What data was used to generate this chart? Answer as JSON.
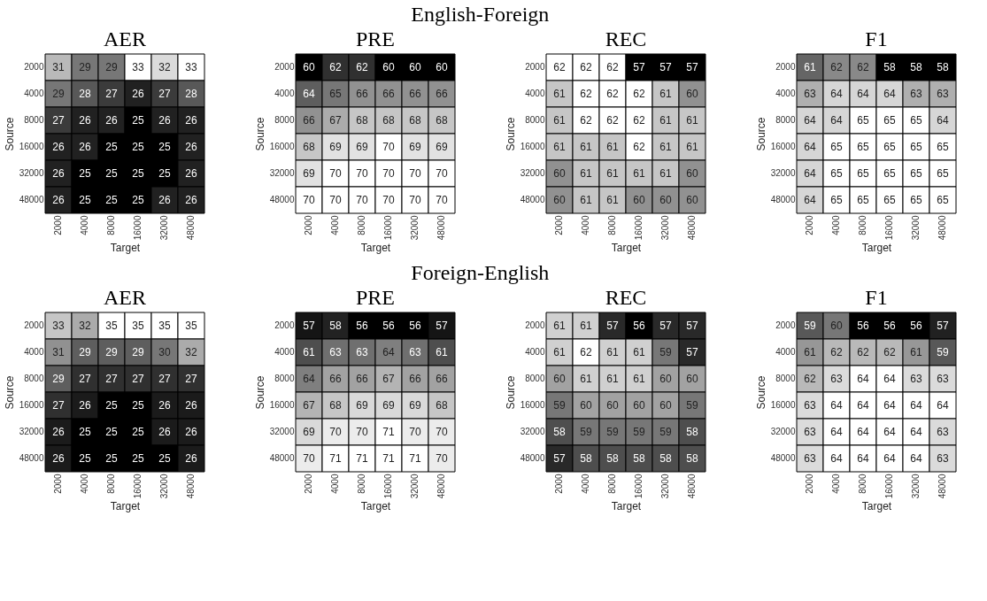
{
  "chart_data": [
    {
      "type": "heatmap",
      "title": "AER",
      "annotations": [
        "English-Foreign"
      ],
      "xlabel": "Target",
      "ylabel": "Source",
      "categories": [
        "2000",
        "4000",
        "8000",
        "16000",
        "32000",
        "48000"
      ],
      "y_categories": [
        "2000",
        "4000",
        "8000",
        "16000",
        "32000",
        "48000"
      ],
      "data_labels": true,
      "cells": [
        [
          31,
          29,
          29,
          33,
          32,
          33
        ],
        [
          29,
          28,
          27,
          26,
          27,
          28
        ],
        [
          27,
          26,
          26,
          25,
          26,
          26
        ],
        [
          26,
          26,
          25,
          25,
          25,
          26
        ],
        [
          26,
          25,
          25,
          25,
          25,
          26
        ],
        [
          26,
          25,
          25,
          25,
          26,
          26
        ]
      ]
    },
    {
      "type": "heatmap",
      "title": "PRE",
      "xlabel": "Target",
      "ylabel": "Source",
      "categories": [
        "2000",
        "4000",
        "8000",
        "16000",
        "32000",
        "48000"
      ],
      "y_categories": [
        "2000",
        "4000",
        "8000",
        "16000",
        "32000",
        "48000"
      ],
      "data_labels": true,
      "cells": [
        [
          60,
          62,
          62,
          60,
          60,
          60
        ],
        [
          64,
          65,
          66,
          66,
          66,
          66
        ],
        [
          66,
          67,
          68,
          68,
          68,
          68
        ],
        [
          68,
          69,
          69,
          70,
          69,
          69
        ],
        [
          69,
          70,
          70,
          70,
          70,
          70
        ],
        [
          70,
          70,
          70,
          70,
          70,
          70
        ]
      ]
    },
    {
      "type": "heatmap",
      "title": "REC",
      "xlabel": "Target",
      "ylabel": "Source",
      "categories": [
        "2000",
        "4000",
        "8000",
        "16000",
        "32000",
        "48000"
      ],
      "y_categories": [
        "2000",
        "4000",
        "8000",
        "16000",
        "32000",
        "48000"
      ],
      "data_labels": true,
      "cells": [
        [
          62,
          62,
          62,
          57,
          57,
          57
        ],
        [
          61,
          62,
          62,
          62,
          61,
          60
        ],
        [
          61,
          62,
          62,
          62,
          61,
          61
        ],
        [
          61,
          61,
          61,
          62,
          61,
          61
        ],
        [
          60,
          61,
          61,
          61,
          61,
          60
        ],
        [
          60,
          61,
          61,
          60,
          60,
          60
        ]
      ]
    },
    {
      "type": "heatmap",
      "title": "F1",
      "xlabel": "Target",
      "ylabel": "Source",
      "categories": [
        "2000",
        "4000",
        "8000",
        "16000",
        "32000",
        "48000"
      ],
      "y_categories": [
        "2000",
        "4000",
        "8000",
        "16000",
        "32000",
        "48000"
      ],
      "data_labels": true,
      "cells": [
        [
          61,
          62,
          62,
          58,
          58,
          58
        ],
        [
          63,
          64,
          64,
          64,
          63,
          63
        ],
        [
          64,
          64,
          65,
          65,
          65,
          64
        ],
        [
          64,
          65,
          65,
          65,
          65,
          65
        ],
        [
          64,
          65,
          65,
          65,
          65,
          65
        ],
        [
          64,
          65,
          65,
          65,
          65,
          65
        ]
      ]
    },
    {
      "type": "heatmap",
      "title": "AER",
      "annotations": [
        "Foreign-English"
      ],
      "xlabel": "Target",
      "ylabel": "Source",
      "categories": [
        "2000",
        "4000",
        "8000",
        "16000",
        "32000",
        "48000"
      ],
      "y_categories": [
        "2000",
        "4000",
        "8000",
        "16000",
        "32000",
        "48000"
      ],
      "data_labels": true,
      "cells": [
        [
          33,
          32,
          35,
          35,
          35,
          35
        ],
        [
          31,
          29,
          29,
          29,
          30,
          32
        ],
        [
          29,
          27,
          27,
          27,
          27,
          27
        ],
        [
          27,
          26,
          25,
          25,
          26,
          26
        ],
        [
          26,
          25,
          25,
          25,
          26,
          26
        ],
        [
          26,
          25,
          25,
          25,
          25,
          26
        ]
      ]
    },
    {
      "type": "heatmap",
      "title": "PRE",
      "xlabel": "Target",
      "ylabel": "Source",
      "categories": [
        "2000",
        "4000",
        "8000",
        "16000",
        "32000",
        "48000"
      ],
      "y_categories": [
        "2000",
        "4000",
        "8000",
        "16000",
        "32000",
        "48000"
      ],
      "data_labels": true,
      "cells": [
        [
          57,
          58,
          56,
          56,
          56,
          57
        ],
        [
          61,
          63,
          63,
          64,
          63,
          61
        ],
        [
          64,
          66,
          66,
          67,
          66,
          66
        ],
        [
          67,
          68,
          69,
          69,
          69,
          68
        ],
        [
          69,
          70,
          70,
          71,
          70,
          70
        ],
        [
          70,
          71,
          71,
          71,
          71,
          70
        ]
      ]
    },
    {
      "type": "heatmap",
      "title": "REC",
      "xlabel": "Target",
      "ylabel": "Source",
      "categories": [
        "2000",
        "4000",
        "8000",
        "16000",
        "32000",
        "48000"
      ],
      "y_categories": [
        "2000",
        "4000",
        "8000",
        "16000",
        "32000",
        "48000"
      ],
      "data_labels": true,
      "cells": [
        [
          61,
          61,
          57,
          56,
          57,
          57
        ],
        [
          61,
          62,
          61,
          61,
          59,
          57
        ],
        [
          60,
          61,
          61,
          61,
          60,
          60
        ],
        [
          59,
          60,
          60,
          60,
          60,
          59
        ],
        [
          58,
          59,
          59,
          59,
          59,
          58
        ],
        [
          57,
          58,
          58,
          58,
          58,
          58
        ]
      ]
    },
    {
      "type": "heatmap",
      "title": "F1",
      "xlabel": "Target",
      "ylabel": "Source",
      "categories": [
        "2000",
        "4000",
        "8000",
        "16000",
        "32000",
        "48000"
      ],
      "y_categories": [
        "2000",
        "4000",
        "8000",
        "16000",
        "32000",
        "48000"
      ],
      "data_labels": true,
      "cells": [
        [
          59,
          60,
          56,
          56,
          56,
          57
        ],
        [
          61,
          62,
          62,
          62,
          61,
          59
        ],
        [
          62,
          63,
          64,
          64,
          63,
          63
        ],
        [
          63,
          64,
          64,
          64,
          64,
          64
        ],
        [
          63,
          64,
          64,
          64,
          64,
          63
        ],
        [
          63,
          64,
          64,
          64,
          64,
          63
        ]
      ]
    }
  ]
}
